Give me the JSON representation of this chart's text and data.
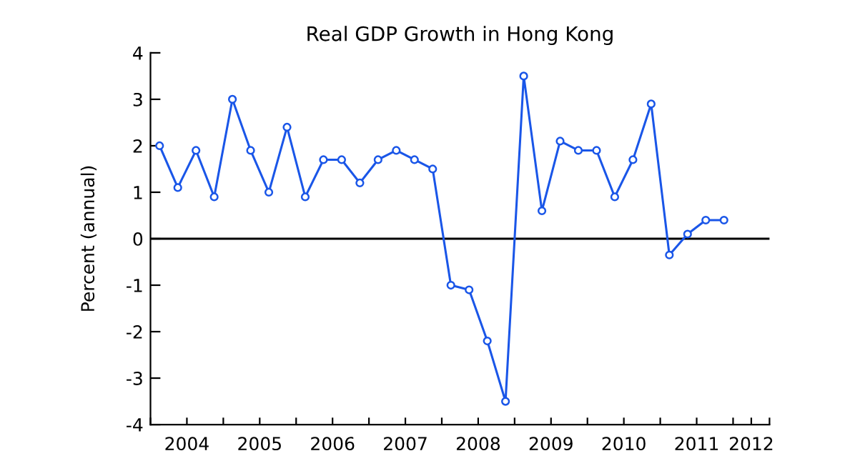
{
  "chart_data": {
    "type": "line",
    "title": "Real GDP Growth in Hong Kong",
    "ylabel": "Percent (annual)",
    "x": [
      2004.125,
      2004.375,
      2004.625,
      2004.875,
      2005.125,
      2005.375,
      2005.625,
      2005.875,
      2006.125,
      2006.375,
      2006.625,
      2006.875,
      2007.125,
      2007.375,
      2007.625,
      2007.875,
      2008.125,
      2008.375,
      2008.625,
      2008.875,
      2009.125,
      2009.375,
      2009.625,
      2009.875,
      2010.125,
      2010.375,
      2010.625,
      2010.875,
      2011.125,
      2011.375,
      2011.625,
      2011.875
    ],
    "series": [
      {
        "color": "#1a56e8",
        "values": [
          2.0,
          1.1,
          1.9,
          0.9,
          3.0,
          1.9,
          1.0,
          2.4,
          0.9,
          1.7,
          1.7,
          1.2,
          1.7,
          1.9,
          1.7,
          1.5,
          -1.0,
          -1.1,
          -2.2,
          -3.5,
          3.5,
          0.6,
          2.1,
          1.9,
          1.9,
          0.9,
          1.7,
          2.9,
          -0.35,
          0.1,
          0.4,
          0.4
        ]
      }
    ],
    "xlim": [
      2004,
      2012.5
    ],
    "xticks": [
      {
        "value": 2004,
        "label": null
      },
      {
        "value": 2004.5,
        "label": "2004"
      },
      {
        "value": 2005,
        "label": null
      },
      {
        "value": 2005.5,
        "label": "2005"
      },
      {
        "value": 2006,
        "label": null
      },
      {
        "value": 2006.5,
        "label": "2006"
      },
      {
        "value": 2007,
        "label": null
      },
      {
        "value": 2007.5,
        "label": "2007"
      },
      {
        "value": 2008,
        "label": null
      },
      {
        "value": 2008.5,
        "label": "2008"
      },
      {
        "value": 2009,
        "label": null
      },
      {
        "value": 2009.5,
        "label": "2009"
      },
      {
        "value": 2010,
        "label": null
      },
      {
        "value": 2010.5,
        "label": "2010"
      },
      {
        "value": 2011,
        "label": null
      },
      {
        "value": 2011.5,
        "label": "2011"
      },
      {
        "value": 2012,
        "label": null
      },
      {
        "value": 2012.25,
        "label": "2012"
      },
      {
        "value": 2012.5,
        "label": null
      }
    ],
    "ylim": [
      -4,
      4
    ],
    "yticks": [
      -4,
      -3,
      -2,
      -1,
      0,
      1,
      2,
      3,
      4
    ],
    "ref_lines": [
      {
        "axis": "y",
        "value": 0,
        "color": "#000000"
      }
    ],
    "marker": "circle",
    "line_style": "solid",
    "grid": false,
    "legend": false
  }
}
